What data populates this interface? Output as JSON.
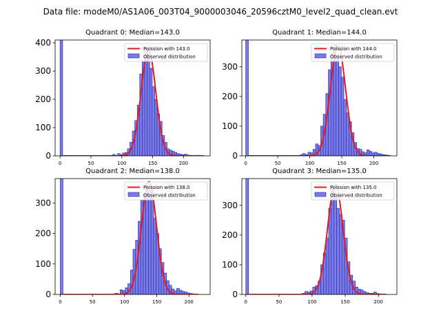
{
  "suptitle": "Data file: modeM0/AS1A06_003T04_9000003046_20596cztM0_level2_quad_clean.evt",
  "colors": {
    "hist_fill": "#7b7be8",
    "hist_edge": "#2020a0",
    "fit_line": "#e41a1c",
    "axis": "#000000"
  },
  "chart_data": [
    {
      "type": "bar",
      "title": "Quadrant 0: Median=143.0",
      "median": 143.0,
      "ylim": [
        0,
        410
      ],
      "xlim": [
        -8,
        243
      ],
      "yticks": [
        0,
        100,
        200,
        300,
        400
      ],
      "xticks": [
        0,
        50,
        100,
        150,
        200
      ],
      "zero_bin": {
        "x": 0,
        "width": 4.2,
        "value": 1000
      },
      "bin_width": 4.2,
      "x": [
        85,
        89,
        93,
        97,
        101,
        105,
        109,
        113,
        117,
        121,
        125,
        129,
        133,
        137,
        141,
        145,
        149,
        153,
        157,
        161,
        165,
        169,
        173,
        177,
        181,
        185,
        189,
        193,
        197,
        201,
        205,
        209,
        213,
        217,
        221,
        225,
        229
      ],
      "values": [
        5,
        2,
        8,
        4,
        10,
        12,
        25,
        48,
        88,
        125,
        180,
        290,
        335,
        380,
        375,
        310,
        245,
        200,
        148,
        122,
        72,
        48,
        25,
        20,
        16,
        12,
        8,
        6,
        4,
        6,
        3,
        2,
        1,
        2,
        2,
        1,
        1
      ],
      "fit": {
        "mu": 143.0,
        "peak": 375,
        "x_range": [
          0,
          232
        ]
      },
      "legend": [
        "Poission with 143.0",
        "Observed distribution"
      ]
    },
    {
      "type": "bar",
      "title": "Quadrant 1: Median=144.0",
      "median": 144.0,
      "ylim": [
        0,
        390
      ],
      "xlim": [
        -6,
        236
      ],
      "yticks": [
        0,
        100,
        200,
        300
      ],
      "xticks": [
        0,
        50,
        100,
        150,
        200
      ],
      "zero_bin": {
        "x": 0,
        "width": 4.2,
        "value": 1000
      },
      "bin_width": 4.2,
      "x": [
        85,
        89,
        93,
        97,
        101,
        105,
        109,
        113,
        117,
        121,
        125,
        129,
        133,
        137,
        141,
        145,
        149,
        153,
        157,
        161,
        165,
        169,
        173,
        177,
        181,
        185,
        189,
        193,
        197,
        201,
        205,
        209,
        213,
        217,
        221
      ],
      "values": [
        4,
        8,
        4,
        12,
        10,
        22,
        40,
        35,
        100,
        140,
        210,
        290,
        345,
        375,
        340,
        300,
        265,
        190,
        145,
        115,
        78,
        45,
        25,
        22,
        14,
        10,
        20,
        15,
        10,
        12,
        8,
        6,
        4,
        3,
        2
      ],
      "fit": {
        "mu": 144.0,
        "peak": 370,
        "x_range": [
          0,
          225
        ]
      },
      "legend": [
        "Poission with 144.0",
        "Observed distribution"
      ]
    },
    {
      "type": "bar",
      "title": "Quadrant 2: Median=138.0",
      "median": 138.0,
      "ylim": [
        0,
        380
      ],
      "xlim": [
        -8,
        233
      ],
      "yticks": [
        0,
        100,
        200,
        300
      ],
      "xticks": [
        0,
        50,
        100,
        150,
        200
      ],
      "zero_bin": {
        "x": 0,
        "width": 4.2,
        "value": 1000
      },
      "bin_width": 4.2,
      "x": [
        85,
        89,
        93,
        97,
        101,
        105,
        109,
        113,
        117,
        121,
        125,
        129,
        133,
        137,
        141,
        145,
        149,
        153,
        157,
        161,
        165,
        169,
        173,
        177,
        181,
        185,
        189,
        193,
        197,
        201,
        205,
        209
      ],
      "values": [
        4,
        2,
        15,
        12,
        22,
        35,
        80,
        148,
        178,
        240,
        310,
        330,
        355,
        340,
        320,
        250,
        200,
        150,
        105,
        70,
        45,
        30,
        18,
        12,
        20,
        14,
        10,
        8,
        5,
        3,
        2,
        1
      ],
      "fit": {
        "mu": 138.0,
        "peak": 370,
        "x_range": [
          0,
          215
        ]
      },
      "legend": [
        "Poission with 138.0",
        "Observed distribution"
      ]
    },
    {
      "type": "bar",
      "title": "Quadrant 3: Median=135.0",
      "median": 135.0,
      "ylim": [
        0,
        390
      ],
      "xlim": [
        -6,
        228
      ],
      "yticks": [
        0,
        100,
        200,
        300
      ],
      "xticks": [
        0,
        50,
        100,
        150,
        200
      ],
      "zero_bin": {
        "x": 0,
        "width": 4.2,
        "value": 1000
      },
      "bin_width": 4.2,
      "x": [
        85,
        89,
        93,
        97,
        101,
        105,
        109,
        113,
        117,
        121,
        125,
        129,
        133,
        137,
        141,
        145,
        149,
        153,
        157,
        161,
        165,
        169,
        173,
        177,
        181,
        185,
        189,
        193,
        197,
        201
      ],
      "values": [
        4,
        10,
        8,
        12,
        25,
        30,
        45,
        100,
        140,
        190,
        290,
        360,
        330,
        290,
        270,
        250,
        190,
        110,
        65,
        45,
        25,
        18,
        15,
        10,
        6,
        4,
        4,
        8,
        3,
        2
      ],
      "fit": {
        "mu": 135.0,
        "peak": 370,
        "x_range": [
          0,
          212
        ]
      },
      "legend": [
        "Poission with 135.0",
        "Observed distribution"
      ]
    }
  ]
}
